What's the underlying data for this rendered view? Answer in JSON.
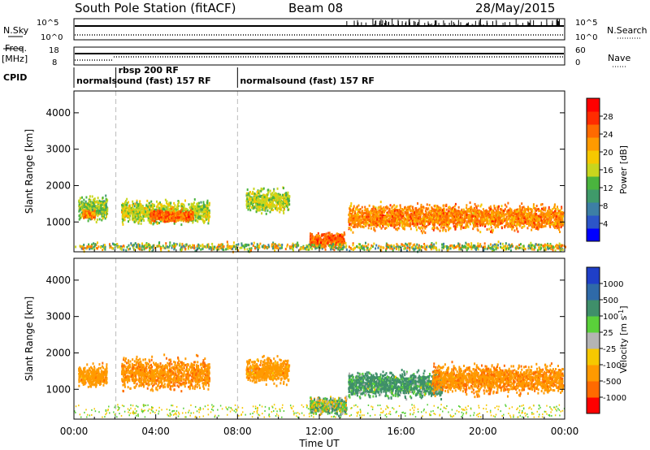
{
  "header": {
    "station": "South Pole Station (fitACF)",
    "beam": "Beam 08",
    "date": "28/May/2015"
  },
  "sky_panel": {
    "left_label": "N.Sky",
    "right_label": "N.Search",
    "left_ticks": [
      "10^5",
      "10^0"
    ],
    "right_ticks": [
      "10^5",
      "10^0"
    ]
  },
  "freq_panel": {
    "left_label_1": "Freq.",
    "left_label_2": "[MHz]",
    "right_label": "Nave",
    "left_ticks": [
      "18",
      "8"
    ],
    "right_ticks": [
      "60",
      "0"
    ]
  },
  "cpid": {
    "label": "CPID",
    "segments": [
      {
        "start_hour": 0,
        "text": "normalsound (fast) 157 RF"
      },
      {
        "start_hour": 2.05,
        "text": "rbsp 200 RF"
      },
      {
        "start_hour": 8.0,
        "text": "normalsound (fast) 157 RF"
      }
    ]
  },
  "axes": {
    "xlabel": "Time UT",
    "x_ticks": [
      "00:00",
      "04:00",
      "08:00",
      "12:00",
      "16:00",
      "20:00",
      "00:00"
    ],
    "x_range_hours": [
      0,
      24
    ],
    "ylabel": "Slant Range [km]",
    "y_ticks": [
      "1000",
      "2000",
      "3000",
      "4000"
    ],
    "y_range_km": [
      180,
      4600
    ],
    "mode_change_hours": [
      2.05,
      8.0
    ]
  },
  "power_colorbar": {
    "label": "Power [dB]",
    "ticks": [
      "4",
      "8",
      "12",
      "16",
      "20",
      "24",
      "28"
    ],
    "range": [
      0,
      32
    ],
    "colors": [
      "#0000ff",
      "#2c55c8",
      "#3d7fa5",
      "#3f9a6a",
      "#4ab43e",
      "#c8d61e",
      "#f6c800",
      "#ff9a00",
      "#ff6a00",
      "#ff2c00",
      "#ff0000"
    ]
  },
  "velocity_colorbar": {
    "label": "Velocity [m s",
    "label_sup": "-1",
    "label_end": "]",
    "ticks": [
      "1000",
      "500",
      "100",
      "25",
      "-25",
      "-100",
      "-500",
      "-1000"
    ],
    "colors": [
      "#1f3fc8",
      "#2f6aa8",
      "#3f8f6a",
      "#5ad03a",
      "#b4b4b4",
      "#f6c800",
      "#ff9a00",
      "#ff6a00",
      "#ff0000"
    ]
  },
  "chart_data": {
    "type": "heatmap",
    "x_unit": "hour UT",
    "y_unit": "km",
    "power_regions": [
      {
        "t": [
          0.2,
          1.6
        ],
        "r": [
          1000,
          1800
        ],
        "level": "mixed",
        "dominant_dB": 14
      },
      {
        "t": [
          0.4,
          1.0
        ],
        "r": [
          1100,
          1400
        ],
        "level": "high",
        "dominant_dB": 24
      },
      {
        "t": [
          2.3,
          6.6
        ],
        "r": [
          900,
          1700
        ],
        "level": "mixed",
        "dominant_dB": 16
      },
      {
        "t": [
          3.7,
          5.8
        ],
        "r": [
          1000,
          1400
        ],
        "level": "high",
        "dominant_dB": 26
      },
      {
        "t": [
          8.4,
          10.5
        ],
        "r": [
          1200,
          2000
        ],
        "level": "mixed",
        "dominant_dB": 16
      },
      {
        "t": [
          11.5,
          13.2
        ],
        "r": [
          250,
          800
        ],
        "level": "high",
        "dominant_dB": 26
      },
      {
        "t": [
          13.4,
          23.9
        ],
        "r": [
          700,
          1600
        ],
        "level": "high",
        "dominant_dB": 24
      },
      {
        "t": [
          0.0,
          24.0
        ],
        "r": [
          200,
          500
        ],
        "level": "scatter",
        "dominant_dB": 10
      }
    ],
    "velocity_regions": [
      {
        "t": [
          0.2,
          1.6
        ],
        "r": [
          1000,
          1800
        ],
        "dominant_ms": -300
      },
      {
        "t": [
          2.3,
          6.6
        ],
        "r": [
          900,
          2000
        ],
        "dominant_ms": -400
      },
      {
        "t": [
          8.4,
          10.5
        ],
        "r": [
          1100,
          2000
        ],
        "dominant_ms": -300
      },
      {
        "t": [
          11.5,
          13.3
        ],
        "r": [
          250,
          900
        ],
        "dominant_ms": 50
      },
      {
        "t": [
          13.4,
          18.0
        ],
        "r": [
          700,
          1600
        ],
        "dominant_ms": 200
      },
      {
        "t": [
          17.5,
          23.9
        ],
        "r": [
          800,
          1800
        ],
        "dominant_ms": -400
      }
    ]
  }
}
